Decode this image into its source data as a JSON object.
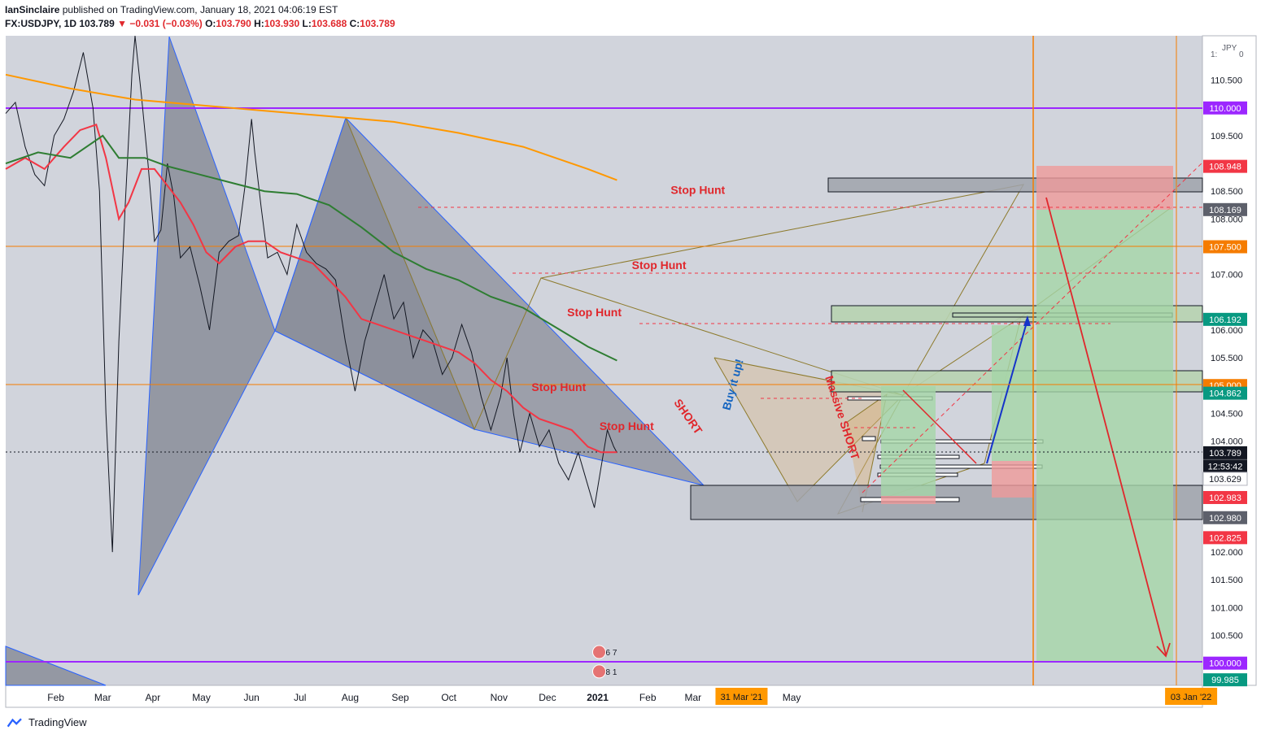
{
  "header": {
    "author": "IanSinclaire",
    "published_text": "published on TradingView.com, January 18, 2021 04:06:19 EST",
    "symbol": "FX:USDJPY, 1D",
    "last": "103.789",
    "change": "▼ −0.031 (−0.03%)",
    "open_label": "O:",
    "open": "103.790",
    "high_label": "H:",
    "high": "103.930",
    "low_label": "L:",
    "low": "103.688",
    "close_label": "C:",
    "close": "103.789"
  },
  "footer": {
    "brand": "TradingView"
  },
  "chart_data": {
    "type": "line",
    "currency": "JPY",
    "currency_fragments": [
      "1:",
      "0"
    ],
    "ylim": [
      99.6,
      111.3
    ],
    "x_ticks": [
      {
        "label": "Feb",
        "d": 31
      },
      {
        "label": "Mar",
        "d": 60
      },
      {
        "label": "Apr",
        "d": 91
      },
      {
        "label": "May",
        "d": 121
      },
      {
        "label": "Jun",
        "d": 152
      },
      {
        "label": "Jul",
        "d": 182
      },
      {
        "label": "Aug",
        "d": 213
      },
      {
        "label": "Sep",
        "d": 244
      },
      {
        "label": "Oct",
        "d": 274
      },
      {
        "label": "Nov",
        "d": 305
      },
      {
        "label": "Dec",
        "d": 335
      },
      {
        "label": "2021",
        "d": 366
      },
      {
        "label": "Feb",
        "d": 397
      },
      {
        "label": "Mar",
        "d": 425
      },
      {
        "label": "May",
        "d": 486
      }
    ],
    "x_highlight_ticks": [
      {
        "label": "31 Mar '21",
        "d": 455
      },
      {
        "label": "03 Jan '22",
        "d": 733
      }
    ],
    "y_ticks": [
      110.5,
      109.5,
      108.5,
      108.0,
      107.0,
      106.0,
      105.5,
      104.5,
      104.0,
      102.0,
      101.5,
      101.0,
      100.5
    ],
    "y_tick_texts": [
      "110.500",
      "109.500",
      "108.500",
      "108.000",
      "107.000",
      "106.000",
      "105.500",
      "104.500",
      "104.000",
      "102.000",
      "101.500",
      "101.000",
      "100.500"
    ],
    "price_badges": [
      {
        "text": "110.000",
        "y": 110.0,
        "color": "#9c27ff"
      },
      {
        "text": "108.948",
        "y": 108.948,
        "color": "#f23645"
      },
      {
        "text": "108.169",
        "y": 108.169,
        "color": "#5d606b"
      },
      {
        "text": "107.500",
        "y": 107.5,
        "color": "#f57c00"
      },
      {
        "text": "106.192",
        "y": 106.192,
        "color": "#089981"
      },
      {
        "text": "105.000",
        "y": 105.0,
        "color": "#f57c00"
      },
      {
        "text": "104.862",
        "y": 104.862,
        "color": "#089981"
      },
      {
        "text": "103.789",
        "y": 103.789,
        "color": "#131722"
      },
      {
        "text": "12:53:42",
        "y": 103.55,
        "color": "#131722"
      },
      {
        "text": "103.629",
        "y": 103.32,
        "color": "#ffffff"
      },
      {
        "text": "102.983",
        "y": 102.983,
        "color": "#f23645"
      },
      {
        "text": "102.980",
        "y": 102.62,
        "color": "#5d606b"
      },
      {
        "text": "102.825",
        "y": 102.26,
        "color": "#f23645"
      },
      {
        "text": "100.000",
        "y": 100.0,
        "color": "#9c27ff"
      },
      {
        "text": "99.985",
        "y": 99.7,
        "color": "#089981"
      }
    ],
    "annotations": [
      {
        "text": "Stop Hunt",
        "d": 428,
        "y": 108.45,
        "color": "#e0272c",
        "rotate": 0
      },
      {
        "text": "Stop Hunt",
        "d": 404,
        "y": 107.1,
        "color": "#e0272c",
        "rotate": 0
      },
      {
        "text": "Stop Hunt",
        "d": 364,
        "y": 106.25,
        "color": "#e0272c",
        "rotate": 0
      },
      {
        "text": "Stop Hunt",
        "d": 342,
        "y": 104.9,
        "color": "#e0272c",
        "rotate": 0
      },
      {
        "text": "Stop Hunt",
        "d": 384,
        "y": 104.2,
        "color": "#e0272c",
        "rotate": 0
      },
      {
        "text": "SHORT",
        "d": 420,
        "y": 104.4,
        "color": "#e0272c",
        "rotate": 55
      },
      {
        "text": "Buy it up!",
        "d": 452,
        "y": 105.0,
        "color": "#1565c0",
        "rotate": -75
      },
      {
        "text": "Massive SHORT",
        "d": 515,
        "y": 104.4,
        "color": "#e0272c",
        "rotate": 72
      }
    ],
    "badge_icons": [
      {
        "text": "6 7",
        "d": 370,
        "y": 100.2
      },
      {
        "text": "8 1",
        "d": 370,
        "y": 99.85
      }
    ],
    "series": [
      {
        "color": "#131722",
        "points": [
          [
            0,
            109.9
          ],
          [
            6,
            110.1
          ],
          [
            12,
            109.3
          ],
          [
            18,
            108.8
          ],
          [
            24,
            108.6
          ],
          [
            30,
            109.5
          ],
          [
            36,
            109.8
          ],
          [
            42,
            110.3
          ],
          [
            48,
            111.0
          ],
          [
            54,
            110.0
          ],
          [
            58,
            108.5
          ],
          [
            62,
            104.5
          ],
          [
            66,
            102.0
          ],
          [
            70,
            105.8
          ],
          [
            74,
            108.3
          ],
          [
            78,
            110.6
          ],
          [
            80,
            111.3
          ],
          [
            84,
            110.2
          ],
          [
            88,
            109.0
          ],
          [
            92,
            107.6
          ],
          [
            96,
            107.8
          ],
          [
            100,
            109.0
          ],
          [
            104,
            108.4
          ],
          [
            108,
            107.3
          ],
          [
            114,
            107.5
          ],
          [
            120,
            106.8
          ],
          [
            126,
            106.0
          ],
          [
            132,
            107.4
          ],
          [
            138,
            107.6
          ],
          [
            144,
            107.7
          ],
          [
            148,
            108.6
          ],
          [
            152,
            109.8
          ],
          [
            154,
            109.2
          ],
          [
            158,
            108.2
          ],
          [
            162,
            107.3
          ],
          [
            168,
            107.4
          ],
          [
            174,
            107.0
          ],
          [
            180,
            107.9
          ],
          [
            186,
            107.4
          ],
          [
            192,
            107.2
          ],
          [
            198,
            107.1
          ],
          [
            204,
            106.9
          ],
          [
            210,
            105.8
          ],
          [
            216,
            104.9
          ],
          [
            222,
            105.8
          ],
          [
            228,
            106.4
          ],
          [
            234,
            107.0
          ],
          [
            240,
            106.2
          ],
          [
            246,
            106.5
          ],
          [
            252,
            105.5
          ],
          [
            258,
            106.0
          ],
          [
            264,
            105.8
          ],
          [
            270,
            105.2
          ],
          [
            276,
            105.5
          ],
          [
            282,
            106.1
          ],
          [
            288,
            105.6
          ],
          [
            294,
            104.8
          ],
          [
            300,
            104.2
          ],
          [
            306,
            104.8
          ],
          [
            310,
            105.5
          ],
          [
            314,
            104.5
          ],
          [
            318,
            103.8
          ],
          [
            324,
            104.5
          ],
          [
            330,
            103.9
          ],
          [
            336,
            104.2
          ],
          [
            342,
            103.6
          ],
          [
            348,
            103.3
          ],
          [
            354,
            103.8
          ],
          [
            360,
            103.2
          ],
          [
            364,
            102.8
          ],
          [
            368,
            103.5
          ],
          [
            372,
            104.2
          ],
          [
            376,
            103.9
          ],
          [
            378,
            103.79
          ]
        ]
      },
      {
        "name": "",
        "color": "#f23645",
        "points": [
          [
            0,
            108.9
          ],
          [
            12,
            109.1
          ],
          [
            24,
            108.9
          ],
          [
            36,
            109.3
          ],
          [
            46,
            109.6
          ],
          [
            56,
            109.7
          ],
          [
            62,
            109.1
          ],
          [
            70,
            108.0
          ],
          [
            76,
            108.3
          ],
          [
            84,
            108.9
          ],
          [
            92,
            108.9
          ],
          [
            100,
            108.6
          ],
          [
            108,
            108.3
          ],
          [
            116,
            107.9
          ],
          [
            124,
            107.4
          ],
          [
            132,
            107.2
          ],
          [
            142,
            107.5
          ],
          [
            150,
            107.6
          ],
          [
            160,
            107.6
          ],
          [
            170,
            107.4
          ],
          [
            180,
            107.3
          ],
          [
            190,
            107.2
          ],
          [
            200,
            106.9
          ],
          [
            210,
            106.6
          ],
          [
            220,
            106.2
          ],
          [
            230,
            106.1
          ],
          [
            240,
            106.0
          ],
          [
            250,
            105.9
          ],
          [
            260,
            105.8
          ],
          [
            270,
            105.7
          ],
          [
            280,
            105.6
          ],
          [
            290,
            105.4
          ],
          [
            300,
            105.1
          ],
          [
            310,
            104.9
          ],
          [
            320,
            104.6
          ],
          [
            330,
            104.4
          ],
          [
            340,
            104.3
          ],
          [
            350,
            104.2
          ],
          [
            360,
            103.9
          ],
          [
            368,
            103.8
          ],
          [
            378,
            103.8
          ]
        ]
      },
      {
        "name": "",
        "color": "#2e7d32",
        "points": [
          [
            0,
            109.0
          ],
          [
            20,
            109.2
          ],
          [
            40,
            109.1
          ],
          [
            60,
            109.5
          ],
          [
            70,
            109.1
          ],
          [
            86,
            109.1
          ],
          [
            100,
            108.95
          ],
          [
            120,
            108.8
          ],
          [
            140,
            108.65
          ],
          [
            160,
            108.5
          ],
          [
            180,
            108.45
          ],
          [
            200,
            108.25
          ],
          [
            220,
            107.85
          ],
          [
            240,
            107.4
          ],
          [
            260,
            107.1
          ],
          [
            280,
            106.9
          ],
          [
            300,
            106.6
          ],
          [
            320,
            106.4
          ],
          [
            340,
            106.05
          ],
          [
            360,
            105.7
          ],
          [
            378,
            105.45
          ]
        ]
      },
      {
        "name": "",
        "color": "#ff9800",
        "points": [
          [
            0,
            110.6
          ],
          [
            40,
            110.35
          ],
          [
            80,
            110.15
          ],
          [
            120,
            110.05
          ],
          [
            160,
            109.95
          ],
          [
            200,
            109.85
          ],
          [
            240,
            109.75
          ],
          [
            280,
            109.55
          ],
          [
            320,
            109.3
          ],
          [
            360,
            108.9
          ],
          [
            378,
            108.7
          ]
        ]
      }
    ]
  }
}
